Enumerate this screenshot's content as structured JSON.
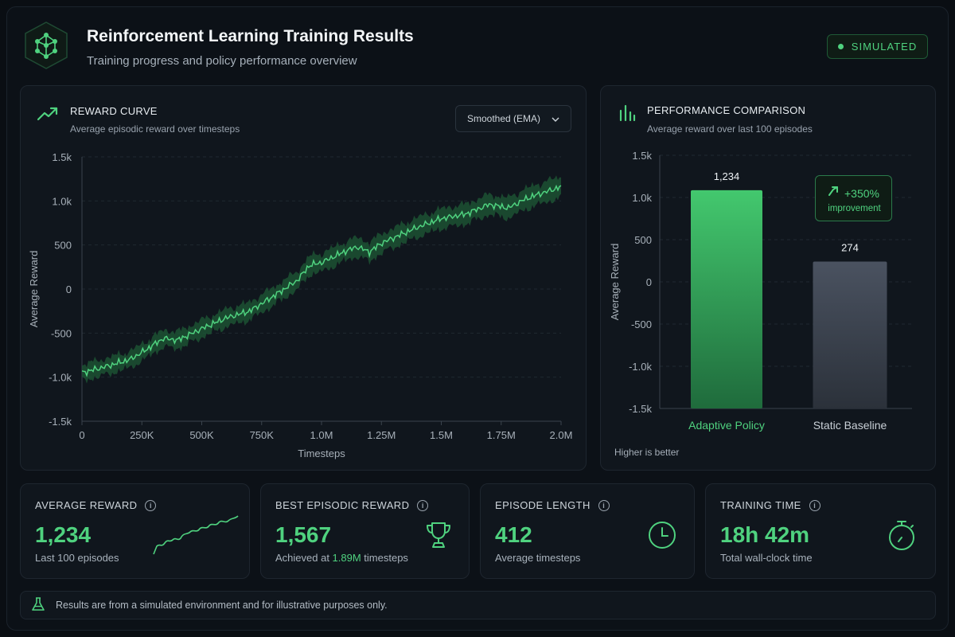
{
  "header": {
    "title": "Reinforcement Learning Training Results",
    "subtitle": "Training progress and policy performance overview",
    "badge": "SIMULATED",
    "logo_icon": "network-nodes-icon"
  },
  "reward_curve": {
    "title": "REWARD CURVE",
    "subtitle": "Average episodic reward over timesteps",
    "dropdown_value": "Smoothed (EMA)",
    "icon": "trending-up-icon"
  },
  "performance": {
    "title": "PERFORMANCE COMPARISON",
    "subtitle": "Average reward over last 100 episodes",
    "improvement_value": "+350%",
    "improvement_label": "improvement",
    "footnote": "Higher is better",
    "icon": "bar-chart-icon"
  },
  "stats": [
    {
      "label": "AVERAGE REWARD",
      "value": "1,234",
      "sub": "Last 100 episodes",
      "icon": "sparkline-icon"
    },
    {
      "label": "BEST EPISODIC REWARD",
      "value": "1,567",
      "sub_prefix": "Achieved at ",
      "sub_highlight": "1.89M",
      "sub_suffix": " timesteps",
      "icon": "trophy-icon"
    },
    {
      "label": "EPISODE LENGTH",
      "value": "412",
      "sub": "Average timesteps",
      "icon": "clock-icon"
    },
    {
      "label": "TRAINING TIME",
      "value": "18h 42m",
      "sub": "Total wall-clock time",
      "icon": "stopwatch-icon"
    }
  ],
  "footer": {
    "text": "Results are from a simulated environment and for illustrative purposes only.",
    "icon": "flask-icon"
  },
  "colors": {
    "accent": "#4fd27f",
    "baseline_bar": "#4a5260",
    "background": "#0c1117"
  },
  "chart_data": [
    {
      "type": "line",
      "title": "",
      "xlabel": "Timesteps",
      "ylabel": "Average Reward",
      "xlim": [
        0,
        2000000
      ],
      "ylim": [
        -1500,
        1500
      ],
      "x_tick_labels": [
        "0",
        "250K",
        "500K",
        "750K",
        "1.0M",
        "1.25M",
        "1.5M",
        "1.75M",
        "2.0M"
      ],
      "y_tick_labels": [
        "1.5k",
        "1.0k",
        "500",
        "0",
        "-500",
        "-1.0k",
        "-1.5k"
      ],
      "grid": true,
      "series": [
        {
          "x": [
            0,
            100000,
            200000,
            250000,
            340000,
            400000,
            500000,
            600000,
            700000,
            800000,
            900000,
            950000,
            1000000,
            1100000,
            1150000,
            1200000,
            1250000,
            1300000,
            1400000,
            1500000,
            1600000,
            1700000,
            1780000,
            1850000,
            1900000,
            2000000
          ],
          "values": [
            -950,
            -880,
            -800,
            -720,
            -560,
            -580,
            -450,
            -330,
            -250,
            -80,
            100,
            270,
            300,
            430,
            480,
            420,
            520,
            580,
            700,
            800,
            850,
            960,
            920,
            1020,
            1070,
            1160
          ],
          "band_half_width": 110
        }
      ]
    },
    {
      "type": "bar",
      "title": "",
      "ylabel": "Average Reward",
      "ylim": [
        -1500,
        1500
      ],
      "y_tick_labels": [
        "1.5k",
        "1.0k",
        "500",
        "0",
        "-500",
        "-1.0k",
        "-1.5k"
      ],
      "categories": [
        "Adaptive Policy",
        "Static Baseline"
      ],
      "values": [
        1234,
        274
      ],
      "value_labels": [
        "1,234",
        "274"
      ],
      "grid": true
    }
  ]
}
